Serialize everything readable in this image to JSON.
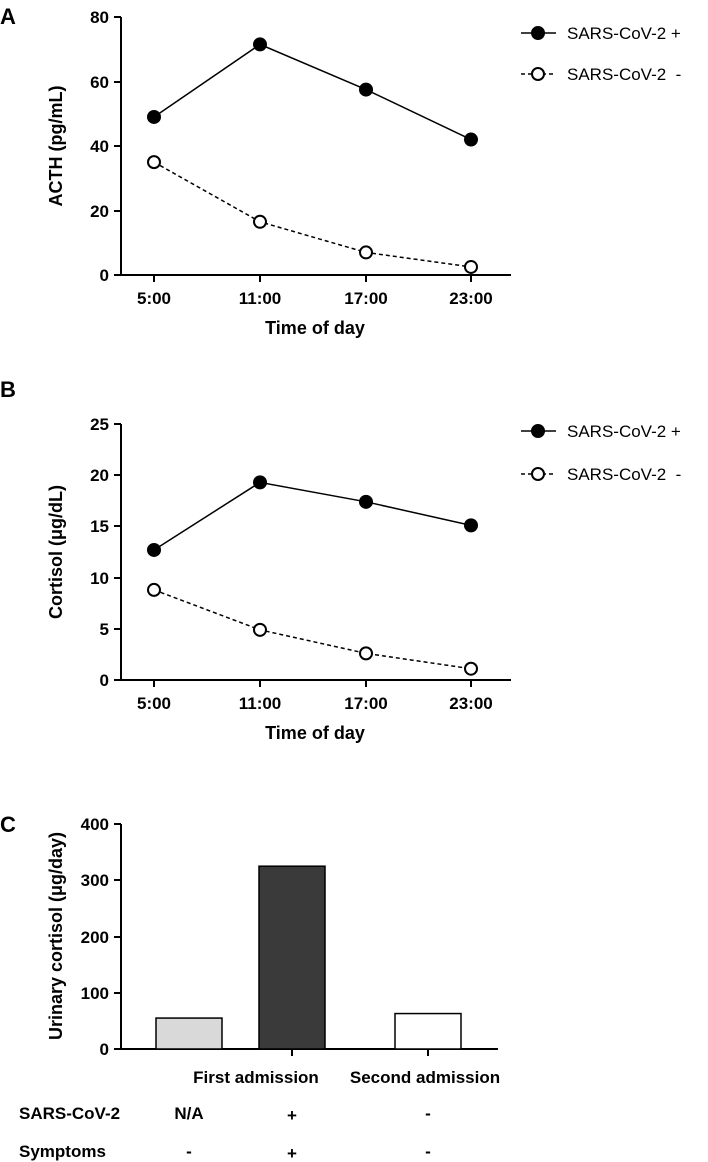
{
  "chart_data": [
    {
      "panel": "A",
      "type": "line",
      "categories": [
        "5:00",
        "11:00",
        "17:00",
        "23:00"
      ],
      "series": [
        {
          "name": "SARS-CoV-2 +",
          "values": [
            49,
            71.5,
            57.5,
            42
          ],
          "marker": "filled-circle",
          "line": "solid"
        },
        {
          "name": "SARS-CoV-2  -",
          "values": [
            35,
            16.5,
            7,
            2.5
          ],
          "marker": "open-circle",
          "line": "dashed"
        }
      ],
      "xlabel": "Time of day",
      "ylabel": "ACTH (pg/mL)",
      "ylim": [
        0,
        80
      ],
      "yticks": [
        "0",
        "20",
        "40",
        "60",
        "80"
      ],
      "legend_position": "top-right"
    },
    {
      "panel": "B",
      "type": "line",
      "categories": [
        "5:00",
        "11:00",
        "17:00",
        "23:00"
      ],
      "series": [
        {
          "name": "SARS-CoV-2 +",
          "values": [
            12.7,
            19.3,
            17.4,
            15.1
          ],
          "marker": "filled-circle",
          "line": "solid"
        },
        {
          "name": "SARS-CoV-2  -",
          "values": [
            8.8,
            4.9,
            2.6,
            1.1
          ],
          "marker": "open-circle",
          "line": "dashed"
        }
      ],
      "xlabel": "Time of day",
      "ylabel": "Cortisol (μg/dL)",
      "ylim": [
        0,
        25
      ],
      "yticks": [
        "0",
        "5",
        "10",
        "15",
        "20",
        "25"
      ],
      "legend_position": "top-right"
    },
    {
      "panel": "C",
      "type": "bar",
      "categories": [
        "First admission",
        "Second admission"
      ],
      "bars": [
        {
          "value": 55,
          "fill": "#d9d9d9"
        },
        {
          "value": 325,
          "fill": "#3a3a3a"
        },
        {
          "value": 63,
          "fill": "#ffffff"
        }
      ],
      "ylabel": "Urinary cortisol (μg/day)",
      "ylim": [
        0,
        400
      ],
      "yticks": [
        "0",
        "100",
        "200",
        "300",
        "400"
      ],
      "row_table": [
        {
          "label": "SARS-CoV-2",
          "values": [
            "N/A",
            "+",
            "-"
          ]
        },
        {
          "label": "Symptoms",
          "values": [
            "-",
            "+",
            "-"
          ]
        }
      ]
    }
  ]
}
